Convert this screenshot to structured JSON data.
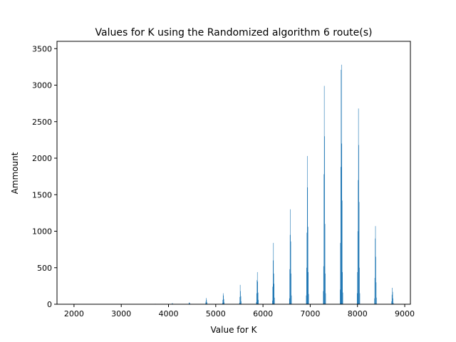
{
  "chart_data": {
    "type": "bar",
    "title": "Values for K using the Randomized algorithm 6 route(s)",
    "xlabel": "Value for K",
    "ylabel": "Ammount",
    "xlim": [
      1640,
      9120
    ],
    "ylim": [
      0,
      3600
    ],
    "xticks": [
      2000,
      3000,
      4000,
      5000,
      6000,
      7000,
      8000,
      9000
    ],
    "yticks": [
      0,
      500,
      1000,
      1500,
      2000,
      2500,
      3000,
      3500
    ],
    "bar_width": 7,
    "color": "#1f77b4",
    "grid": false,
    "legend": "none",
    "clusters": [
      {
        "center": 3720,
        "values": [
          3,
          6,
          4
        ]
      },
      {
        "center": 4080,
        "values": [
          4,
          8,
          15,
          10,
          5
        ]
      },
      {
        "center": 4440,
        "values": [
          6,
          14,
          25,
          18,
          8
        ]
      },
      {
        "center": 4800,
        "values": [
          10,
          35,
          85,
          60,
          30,
          12
        ]
      },
      {
        "center": 5160,
        "values": [
          15,
          60,
          150,
          120,
          70,
          25
        ]
      },
      {
        "center": 5520,
        "values": [
          20,
          100,
          265,
          180,
          110,
          40
        ]
      },
      {
        "center": 5880,
        "values": [
          30,
          150,
          330,
          440,
          310,
          160,
          60
        ]
      },
      {
        "center": 6220,
        "values": [
          50,
          240,
          600,
          840,
          420,
          280,
          90
        ]
      },
      {
        "center": 6580,
        "values": [
          80,
          480,
          950,
          1300,
          860,
          420,
          120
        ]
      },
      {
        "center": 6940,
        "values": [
          120,
          500,
          980,
          2030,
          1600,
          1060,
          440,
          140
        ]
      },
      {
        "center": 7300,
        "values": [
          180,
          520,
          1780,
          2990,
          2300,
          1100,
          420,
          150
        ]
      },
      {
        "center": 7660,
        "values": [
          200,
          840,
          1880,
          3210,
          3280,
          2200,
          1420,
          440,
          160
        ]
      },
      {
        "center": 8020,
        "values": [
          150,
          440,
          1000,
          1700,
          2680,
          2180,
          1400,
          500,
          150
        ]
      },
      {
        "center": 8380,
        "values": [
          80,
          360,
          900,
          1070,
          650,
          300,
          90
        ]
      },
      {
        "center": 8740,
        "values": [
          40,
          130,
          225,
          170,
          80,
          20
        ]
      }
    ]
  }
}
